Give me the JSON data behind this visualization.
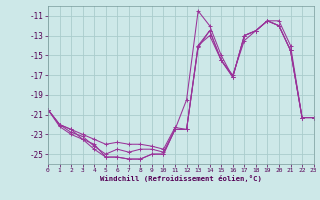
{
  "bg_color": "#cde8e8",
  "grid_color": "#aacccc",
  "line_color": "#993399",
  "xlim": [
    0,
    23
  ],
  "ylim": [
    -26,
    -10
  ],
  "yticks": [
    -25,
    -23,
    -21,
    -19,
    -17,
    -15,
    -13,
    -11
  ],
  "xticks": [
    0,
    1,
    2,
    3,
    4,
    5,
    6,
    7,
    8,
    9,
    10,
    11,
    12,
    13,
    14,
    15,
    16,
    17,
    18,
    19,
    20,
    21,
    22,
    23
  ],
  "xlabel": "Windchill (Refroidissement éolien,°C)",
  "series": [
    [
      -20.5,
      -22.0,
      -22.5,
      -23.0,
      -23.5,
      -24.0,
      -23.8,
      -24.0,
      -24.0,
      -24.2,
      -24.5,
      -22.3,
      -22.5,
      -14.0,
      -13.0,
      -15.5,
      -17.0,
      -13.5,
      -12.5,
      -11.5,
      -11.5,
      -14.0,
      -21.3,
      -21.3
    ],
    [
      -20.5,
      -22.0,
      -22.8,
      -23.2,
      -24.2,
      -25.0,
      -24.5,
      -24.8,
      -24.5,
      -24.5,
      -24.8,
      -22.5,
      -22.5,
      -14.2,
      -12.5,
      -15.5,
      -17.2,
      -13.0,
      -12.5,
      -11.5,
      -12.0,
      -14.5,
      -21.3,
      -21.3
    ],
    [
      -20.5,
      -22.0,
      -22.5,
      -23.5,
      -24.0,
      -25.3,
      -25.3,
      -25.5,
      -25.5,
      -25.0,
      -25.0,
      -22.5,
      -19.5,
      -10.5,
      -12.0,
      -15.0,
      -17.2,
      -13.0,
      -12.5,
      -11.5,
      -12.0,
      -14.5,
      -21.3,
      -21.3
    ],
    [
      -20.5,
      -22.2,
      -23.0,
      -23.5,
      -24.5,
      -25.3,
      -25.3,
      -25.5,
      -25.5,
      -25.0,
      -25.0,
      -22.5,
      -22.5,
      -14.0,
      -12.5,
      -15.5,
      -17.2,
      -13.0,
      -12.5,
      -11.5,
      -12.0,
      -14.5,
      -21.3,
      -21.3
    ]
  ]
}
